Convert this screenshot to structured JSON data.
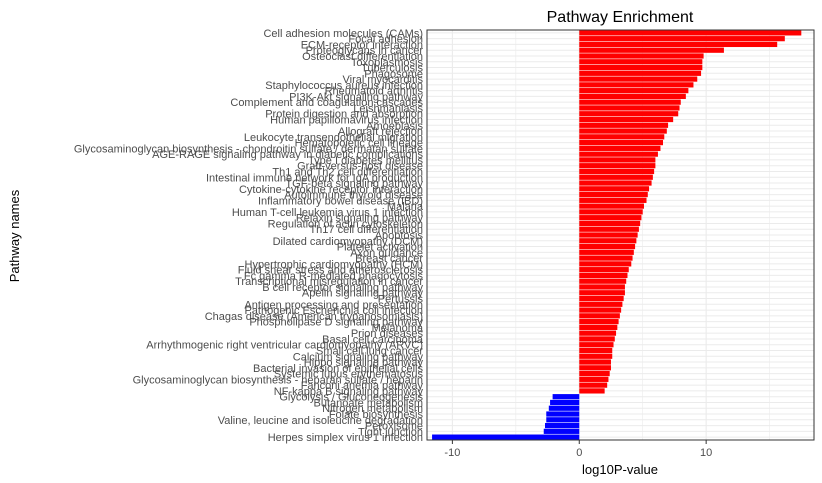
{
  "chart_data": {
    "type": "bar",
    "orientation": "horizontal",
    "title": "Pathway Enrichment",
    "xlabel": "log10P-value",
    "ylabel": "Pathway names",
    "xlim": [
      -12,
      18.5
    ],
    "xticks": [
      -10,
      0,
      10
    ],
    "grid": true,
    "legend": "none",
    "colors": {
      "positive": "#ff0000",
      "negative": "#0000ff",
      "grid": "#ebebeb",
      "panel_border": "#333333",
      "text": "#4d4d4d"
    },
    "categories": [
      "Cell adhesion molecules (CAMs)",
      "Focal adhesion",
      "ECM-receptor interaction",
      "Proteoglycans in cancer",
      "Osteoclast differentiation",
      "Toxoplasmosis",
      "Tuberculosis",
      "Phagosome",
      "Viral myocarditis",
      "Staphylococcus aureus infection",
      "Rheumatoid arthritis",
      "PI3K-Akt signaling pathway",
      "Complement and coagulation cascades",
      "Leishmaniasis",
      "Protein digestion and absorption",
      "Human papillomavirus infection",
      "Amoebiasis",
      "Allograft rejection",
      "Leukocyte transendothelial migration",
      "Hematopoietic cell lineage",
      "Glycosaminoglycan biosynthesis - chondroitin sulfate / dermatan sulfate",
      "AGE-RAGE signaling pathway in diabetic complications",
      "Type I diabetes mellitus",
      "Graft-versus-host disease",
      "Th1 and Th2 cell differentiation",
      "Intestinal immune network for IgA production",
      "TGF-beta signaling pathway",
      "Cytokine-cytokine receptor interaction",
      "Autoimmune thyroid disease",
      "Inflammatory bowel disease (IBD)",
      "Malaria",
      "Human T-cell leukemia virus 1 infection",
      "Relaxin signaling pathway",
      "Regulation of actin cytoskeleton",
      "Th17 cell differentiation",
      "Apoptosis",
      "Dilated cardiomyopathy (DCM)",
      "Platelet activation",
      "Axon guidance",
      "Breast cancer",
      "Hypertrophic cardiomyopathy (HCM)",
      "Fluid shear stress and atherosclerosis",
      "Fc gamma R-mediated phagocytosis",
      "Transcriptional misregulation in cancer",
      "B cell receptor signaling pathway",
      "Apelin signaling pathway",
      "Pertussis",
      "Antigen processing and presentation",
      "Pathogenic Escherichia coli infection",
      "Chagas disease (American trypanosomiasis)",
      "Phospholipase D signaling pathway",
      "Melanoma",
      "Prion diseases",
      "Basal cell carcinoma",
      "Arrhythmogenic right ventricular cardiomyopathy (ARVC)",
      "Small cell lung cancer",
      "Calcium signaling pathway",
      "Hippo signaling pathway",
      "Bacterial invasion of epithelial cells",
      "Systemic lupus erythematosus",
      "Glycosaminoglycan biosynthesis - heparan sulfate / heparin",
      "Fanconi anemia pathway",
      "NF-kappa B signaling pathway",
      "Glycolysis / Gluconeogenesis",
      "Butanoate metabolism",
      "Nitrogen metabolism",
      "Folate biosynthesis",
      "Valine, leucine and isoleucine degradation",
      "Peroxisome",
      "Tight junction",
      "Herpes simplex virus 1 infection"
    ],
    "values": [
      17.5,
      16.2,
      15.6,
      11.4,
      9.8,
      9.7,
      9.7,
      9.6,
      9.3,
      9.0,
      8.6,
      8.4,
      8.0,
      7.9,
      7.8,
      7.4,
      7.0,
      6.9,
      6.7,
      6.6,
      6.4,
      6.2,
      6.0,
      6.0,
      5.9,
      5.8,
      5.7,
      5.5,
      5.4,
      5.3,
      5.1,
      5.0,
      4.9,
      4.8,
      4.7,
      4.6,
      4.5,
      4.4,
      4.3,
      4.2,
      4.1,
      3.9,
      3.8,
      3.7,
      3.6,
      3.6,
      3.5,
      3.4,
      3.3,
      3.2,
      3.1,
      3.0,
      2.9,
      2.8,
      2.7,
      2.6,
      2.6,
      2.5,
      2.5,
      2.4,
      2.3,
      2.2,
      2.0,
      -2.1,
      -2.3,
      -2.4,
      -2.6,
      -2.6,
      -2.7,
      -2.8,
      -11.6
    ]
  }
}
